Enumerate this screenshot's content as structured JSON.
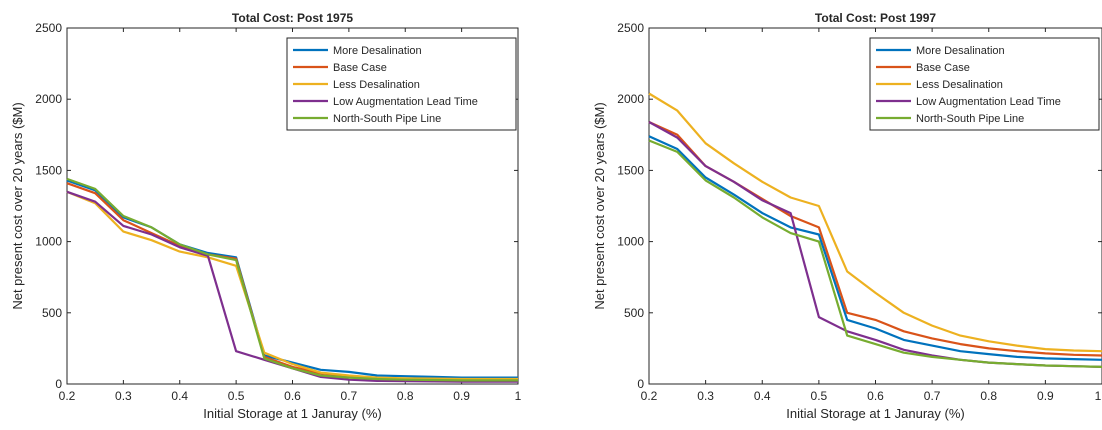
{
  "figure": {
    "axis_color": "#262626",
    "background": "#ffffff"
  },
  "chart_data": [
    {
      "type": "line",
      "title": "Total Cost: Post 1975",
      "xlabel": "Initial Storage at 1 Januray (%)",
      "ylabel": "Net present cost over 20 years ($M)",
      "xlim": [
        0.2,
        1.0
      ],
      "ylim": [
        0,
        2500
      ],
      "xticks": [
        "0.2",
        "0.3",
        "0.4",
        "0.5",
        "0.6",
        "0.7",
        "0.8",
        "0.9",
        "1"
      ],
      "yticks": [
        "0",
        "500",
        "1000",
        "1500",
        "2000",
        "2500"
      ],
      "grid": false,
      "legend_position": "top-right",
      "x": [
        0.2,
        0.25,
        0.3,
        0.35,
        0.4,
        0.45,
        0.5,
        0.55,
        0.6,
        0.65,
        0.7,
        0.75,
        0.8,
        0.85,
        0.9,
        0.95,
        1.0
      ],
      "series": [
        {
          "name": "More Desalination",
          "color": "#0072BD",
          "values": [
            1430,
            1360,
            1170,
            1100,
            980,
            920,
            890,
            200,
            150,
            100,
            85,
            60,
            55,
            50,
            45,
            45,
            45
          ]
        },
        {
          "name": "Base Case",
          "color": "#D95319",
          "values": [
            1410,
            1340,
            1150,
            1060,
            970,
            910,
            880,
            190,
            120,
            75,
            55,
            40,
            35,
            33,
            30,
            30,
            30
          ]
        },
        {
          "name": "Less Desalination",
          "color": "#EDB120",
          "values": [
            1350,
            1270,
            1070,
            1010,
            930,
            890,
            830,
            220,
            140,
            80,
            60,
            45,
            40,
            38,
            35,
            35,
            35
          ]
        },
        {
          "name": "Low Augmentation Lead Time",
          "color": "#7E2F8E",
          "values": [
            1350,
            1280,
            1110,
            1050,
            960,
            900,
            230,
            170,
            110,
            50,
            30,
            22,
            20,
            18,
            17,
            17,
            17
          ]
        },
        {
          "name": "North-South Pipe Line",
          "color": "#77AC30",
          "values": [
            1440,
            1370,
            1180,
            1100,
            980,
            910,
            870,
            180,
            110,
            60,
            45,
            35,
            30,
            28,
            25,
            25,
            25
          ]
        }
      ]
    },
    {
      "type": "line",
      "title": "Total Cost: Post 1997",
      "xlabel": "Initial Storage at 1 Januray (%)",
      "ylabel": "Net present cost over 20 years ($M)",
      "xlim": [
        0.2,
        1.0
      ],
      "ylim": [
        0,
        2500
      ],
      "xticks": [
        "0.2",
        "0.3",
        "0.4",
        "0.5",
        "0.6",
        "0.7",
        "0.8",
        "0.9",
        "1"
      ],
      "yticks": [
        "0",
        "500",
        "1000",
        "1500",
        "2000",
        "2500"
      ],
      "grid": false,
      "legend_position": "top-right",
      "x": [
        0.2,
        0.25,
        0.3,
        0.35,
        0.4,
        0.45,
        0.5,
        0.55,
        0.6,
        0.65,
        0.7,
        0.75,
        0.8,
        0.85,
        0.9,
        0.95,
        1.0
      ],
      "series": [
        {
          "name": "More Desalination",
          "color": "#0072BD",
          "values": [
            1740,
            1650,
            1450,
            1330,
            1200,
            1100,
            1050,
            450,
            390,
            310,
            270,
            230,
            210,
            190,
            180,
            175,
            170
          ]
        },
        {
          "name": "Base Case",
          "color": "#D95319",
          "values": [
            1840,
            1750,
            1530,
            1420,
            1300,
            1180,
            1100,
            500,
            450,
            370,
            320,
            280,
            250,
            230,
            215,
            205,
            200
          ]
        },
        {
          "name": "Less Desalination",
          "color": "#EDB120",
          "values": [
            2040,
            1920,
            1690,
            1550,
            1420,
            1310,
            1250,
            790,
            640,
            500,
            410,
            340,
            300,
            270,
            245,
            235,
            230
          ]
        },
        {
          "name": "Low Augmentation Lead Time",
          "color": "#7E2F8E",
          "values": [
            1840,
            1730,
            1530,
            1420,
            1290,
            1200,
            470,
            370,
            310,
            240,
            200,
            170,
            150,
            140,
            130,
            125,
            120
          ]
        },
        {
          "name": "North-South Pipe Line",
          "color": "#77AC30",
          "values": [
            1710,
            1630,
            1430,
            1310,
            1170,
            1060,
            1000,
            340,
            280,
            220,
            190,
            170,
            150,
            140,
            130,
            125,
            120
          ]
        }
      ]
    }
  ]
}
